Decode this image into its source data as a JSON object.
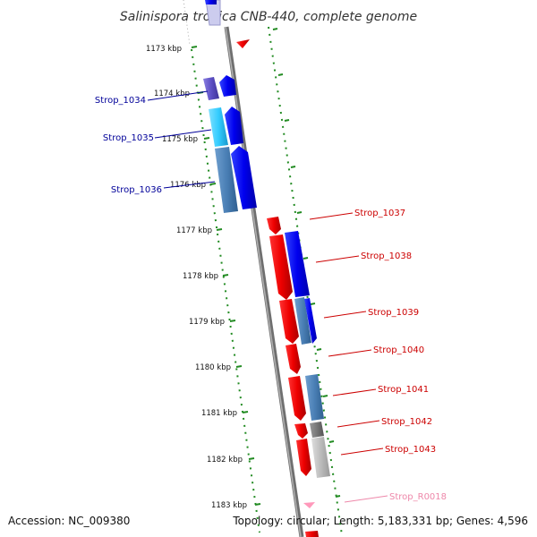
{
  "title": "Salinispora tropica CNB-440, complete genome",
  "accession": "Accession: NC_009380",
  "summary": "Topology: circular; Length: 5,183,331 bp; Genes: 4,596",
  "colors": {
    "forward_label": "#cc0000",
    "reverse_label": "#000099",
    "rna_label": "#ee88aa",
    "scale": "#228b22",
    "backbone": "#888888"
  },
  "ticks": [
    "1173 kbp",
    "1174 kbp",
    "1175 kbp",
    "1176 kbp",
    "1177 kbp",
    "1178 kbp",
    "1179 kbp",
    "1180 kbp",
    "1181 kbp",
    "1182 kbp",
    "1183 kbp"
  ],
  "labels": {
    "left": [
      "Strop_1034",
      "Strop_1035",
      "Strop_1036"
    ],
    "right": [
      "Strop_1037",
      "Strop_1038",
      "Strop_1039",
      "Strop_1040",
      "Strop_1041",
      "Strop_1042",
      "Strop_1043",
      "Strop_R0018"
    ]
  }
}
